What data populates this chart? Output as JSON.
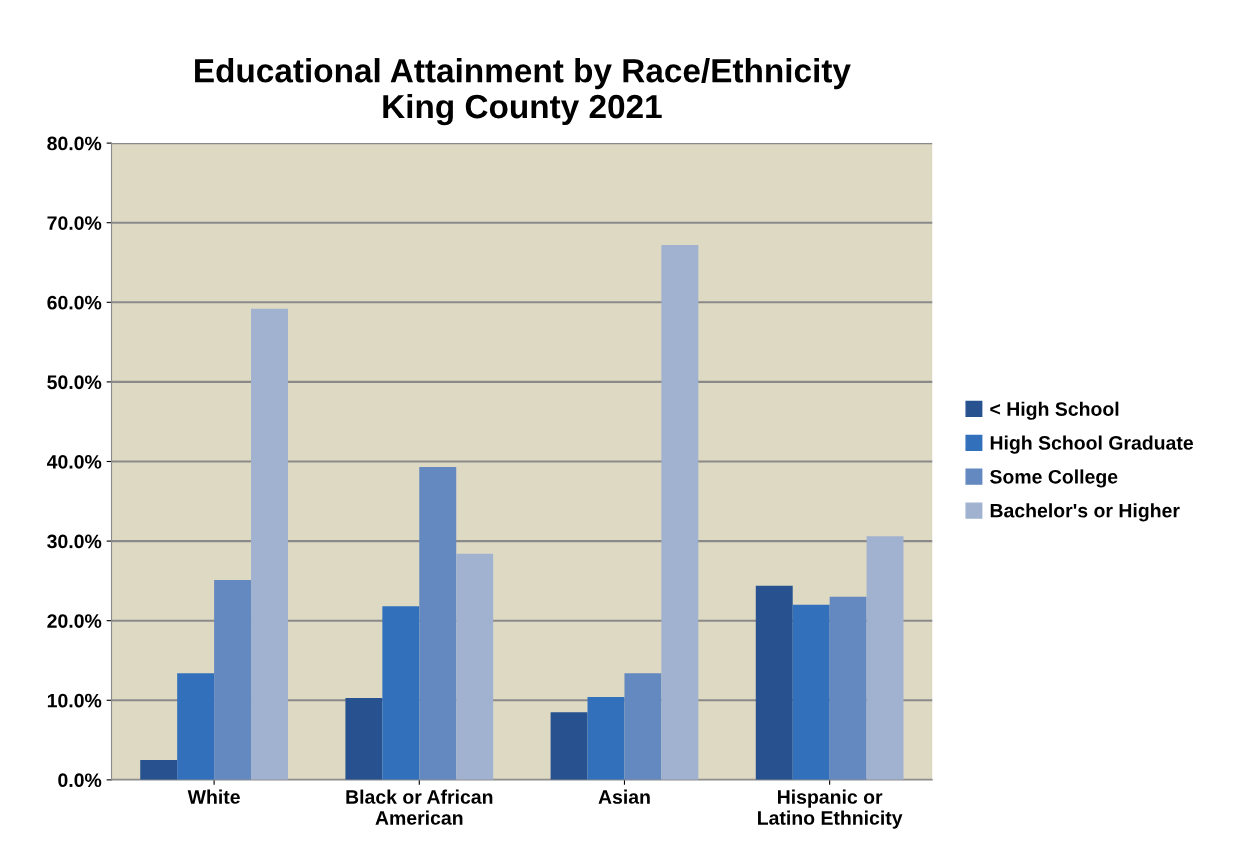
{
  "chart_data": {
    "type": "bar",
    "title": "Educational Attainment by Race/Ethnicity\nKing County 2021",
    "categories": [
      "White",
      "Black or African\nAmerican",
      "Asian",
      "Hispanic or\nLatino Ethnicity"
    ],
    "series": [
      {
        "name": "< High School",
        "color": "#27528f",
        "values": [
          2.5,
          10.3,
          8.5,
          24.4
        ]
      },
      {
        "name": "High School Graduate",
        "color": "#3270bb",
        "values": [
          13.4,
          21.8,
          10.4,
          22.0
        ]
      },
      {
        "name": "Some College",
        "color": "#6489c0",
        "values": [
          25.1,
          39.3,
          13.4,
          23.0
        ]
      },
      {
        "name": "Bachelor's or Higher",
        "color": "#a0b2d0",
        "values": [
          59.2,
          28.4,
          67.2,
          30.6
        ]
      }
    ],
    "ylim": [
      0,
      80
    ],
    "yticks": [
      {
        "value": 0,
        "label": "0.0%"
      },
      {
        "value": 10,
        "label": "10.0%"
      },
      {
        "value": 20,
        "label": "20.0%"
      },
      {
        "value": 30,
        "label": "30.0%"
      },
      {
        "value": 40,
        "label": "40.0%"
      },
      {
        "value": 50,
        "label": "50.0%"
      },
      {
        "value": 60,
        "label": "60.0%"
      },
      {
        "value": 70,
        "label": "70.0%"
      },
      {
        "value": 80,
        "label": "80.0%"
      }
    ],
    "grid": "y",
    "legend": "right"
  }
}
